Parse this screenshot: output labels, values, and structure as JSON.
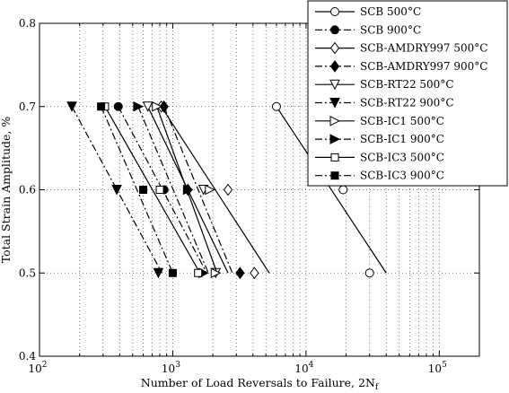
{
  "chart_data": {
    "type": "line",
    "title": "",
    "xlabel": "Number of Load Reversals to Failure, 2N",
    "xlabel_subscript": "f",
    "ylabel": "Total Strain Amplitude, %",
    "x_scale": "log",
    "xlim": [
      100,
      200000
    ],
    "ylim": [
      0.4,
      0.8
    ],
    "x_ticks": [
      100,
      1000,
      10000,
      100000
    ],
    "x_tick_labels": [
      {
        "base": "10",
        "exp": "2"
      },
      {
        "base": "10",
        "exp": "3"
      },
      {
        "base": "10",
        "exp": "4"
      },
      {
        "base": "10",
        "exp": "5"
      }
    ],
    "y_ticks": [
      0.4,
      0.5,
      0.6,
      0.7,
      0.8
    ],
    "y_tick_labels": [
      "0.4",
      "0.5",
      "0.6",
      "0.7",
      "0.8"
    ],
    "grid": "dotted",
    "legend_position": "top-right",
    "series": [
      {
        "name": "SCB 500°C",
        "marker": "circle",
        "filled": false,
        "dash": "solid",
        "x": [
          6000,
          19000,
          30000
        ],
        "y": [
          0.7,
          0.6,
          0.5
        ],
        "fit_x": [
          6000,
          40000
        ],
        "fit_y": [
          0.7,
          0.5
        ]
      },
      {
        "name": "SCB 900°C",
        "marker": "circle",
        "filled": true,
        "dash": "dashdot",
        "x": [
          390,
          860,
          1600
        ],
        "y": [
          0.7,
          0.6,
          0.5
        ],
        "fit_x": [
          390,
          1800
        ],
        "fit_y": [
          0.7,
          0.5
        ]
      },
      {
        "name": "SCB-AMDRY997 500°C",
        "marker": "diamond",
        "filled": false,
        "dash": "solid",
        "x": [
          820,
          2600,
          4100
        ],
        "y": [
          0.7,
          0.6,
          0.5
        ],
        "fit_x": [
          820,
          5300
        ],
        "fit_y": [
          0.7,
          0.5
        ]
      },
      {
        "name": "SCB-AMDRY997 900°C",
        "marker": "diamond",
        "filled": true,
        "dash": "dashdot",
        "x": [
          860,
          1300,
          3200
        ],
        "y": [
          0.7,
          0.6,
          0.5
        ],
        "fit_x": [
          860,
          2800
        ],
        "fit_y": [
          0.7,
          0.5
        ]
      },
      {
        "name": "SCB-RT22 500°C",
        "marker": "triangle-down",
        "filled": false,
        "dash": "solid",
        "x": [
          650,
          1700,
          2100
        ],
        "y": [
          0.7,
          0.6,
          0.5
        ],
        "fit_x": [
          650,
          2600
        ],
        "fit_y": [
          0.7,
          0.5
        ]
      },
      {
        "name": "SCB-RT22 900°C",
        "marker": "triangle-down",
        "filled": true,
        "dash": "dashdot",
        "x": [
          175,
          380,
          780
        ],
        "y": [
          0.7,
          0.6,
          0.5
        ],
        "fit_x": [
          175,
          830
        ],
        "fit_y": [
          0.7,
          0.5
        ]
      },
      {
        "name": "SCB-IC1 500°C",
        "marker": "triangle-right",
        "filled": false,
        "dash": "solid",
        "x": [
          760,
          1900,
          2100
        ],
        "y": [
          0.7,
          0.6,
          0.5
        ],
        "fit_x": [
          760,
          2150
        ],
        "fit_y": [
          0.7,
          0.5
        ]
      },
      {
        "name": "SCB-IC1 900°C",
        "marker": "triangle-right",
        "filled": true,
        "dash": "dashdot",
        "x": [
          550,
          1300,
          1700
        ],
        "y": [
          0.7,
          0.6,
          0.5
        ],
        "fit_x": [
          550,
          1850
        ],
        "fit_y": [
          0.7,
          0.5
        ]
      },
      {
        "name": "SCB-IC3 500°C",
        "marker": "square",
        "filled": false,
        "dash": "solid",
        "x": [
          310,
          800,
          1550
        ],
        "y": [
          0.7,
          0.6,
          0.5
        ],
        "fit_x": [
          310,
          1600
        ],
        "fit_y": [
          0.7,
          0.5
        ]
      },
      {
        "name": "SCB-IC3 900°C",
        "marker": "square",
        "filled": true,
        "dash": "dashdot",
        "x": [
          290,
          600,
          1000
        ],
        "y": [
          0.7,
          0.6,
          0.5
        ],
        "fit_x": [
          290,
          1000
        ],
        "fit_y": [
          0.7,
          0.5
        ]
      }
    ]
  }
}
